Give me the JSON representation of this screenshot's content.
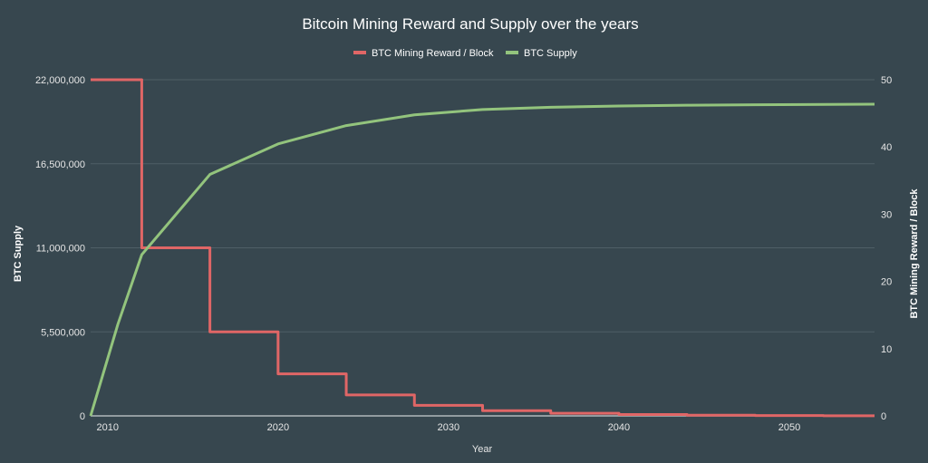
{
  "chart_data": {
    "type": "line",
    "title": "Bitcoin Mining Reward and Supply over the years",
    "xlabel": "Year",
    "ylabel_left": "BTC Supply",
    "ylabel_right": "BTC Mining Reward / Block",
    "xlim": [
      2009,
      2055
    ],
    "ylim_left": [
      0,
      22000000
    ],
    "ylim_right": [
      0,
      50
    ],
    "x_ticks": [
      "2010",
      "2020",
      "2030",
      "2040",
      "2050"
    ],
    "y_left_ticks": [
      "0",
      "5,500,000",
      "11,000,000",
      "16,500,000",
      "22,000,000"
    ],
    "y_right_ticks": [
      "0",
      "10",
      "20",
      "30",
      "40",
      "50"
    ],
    "grid": true,
    "legend_position": "top",
    "series": [
      {
        "name": "BTC Mining Reward / Block",
        "axis": "right",
        "color": "#e06666",
        "step": true,
        "x": [
          2009,
          2012,
          2016,
          2020,
          2024,
          2028,
          2032,
          2036,
          2040,
          2044,
          2048,
          2052,
          2055
        ],
        "values": [
          50,
          25,
          12.5,
          6.25,
          3.125,
          1.5625,
          0.78125,
          0.390625,
          0.1953125,
          0.09765625,
          0.048828125,
          0.0244140625,
          0.0244140625
        ]
      },
      {
        "name": "BTC Supply",
        "axis": "left",
        "color": "#93c47d",
        "step": false,
        "x": [
          2009,
          2010.6,
          2012,
          2016,
          2020,
          2024,
          2028,
          2032,
          2036,
          2040,
          2044,
          2048,
          2055
        ],
        "values": [
          0,
          6000000,
          10550000,
          15800000,
          17800000,
          19000000,
          19700000,
          20050000,
          20200000,
          20280000,
          20330000,
          20360000,
          20400000
        ]
      }
    ]
  }
}
